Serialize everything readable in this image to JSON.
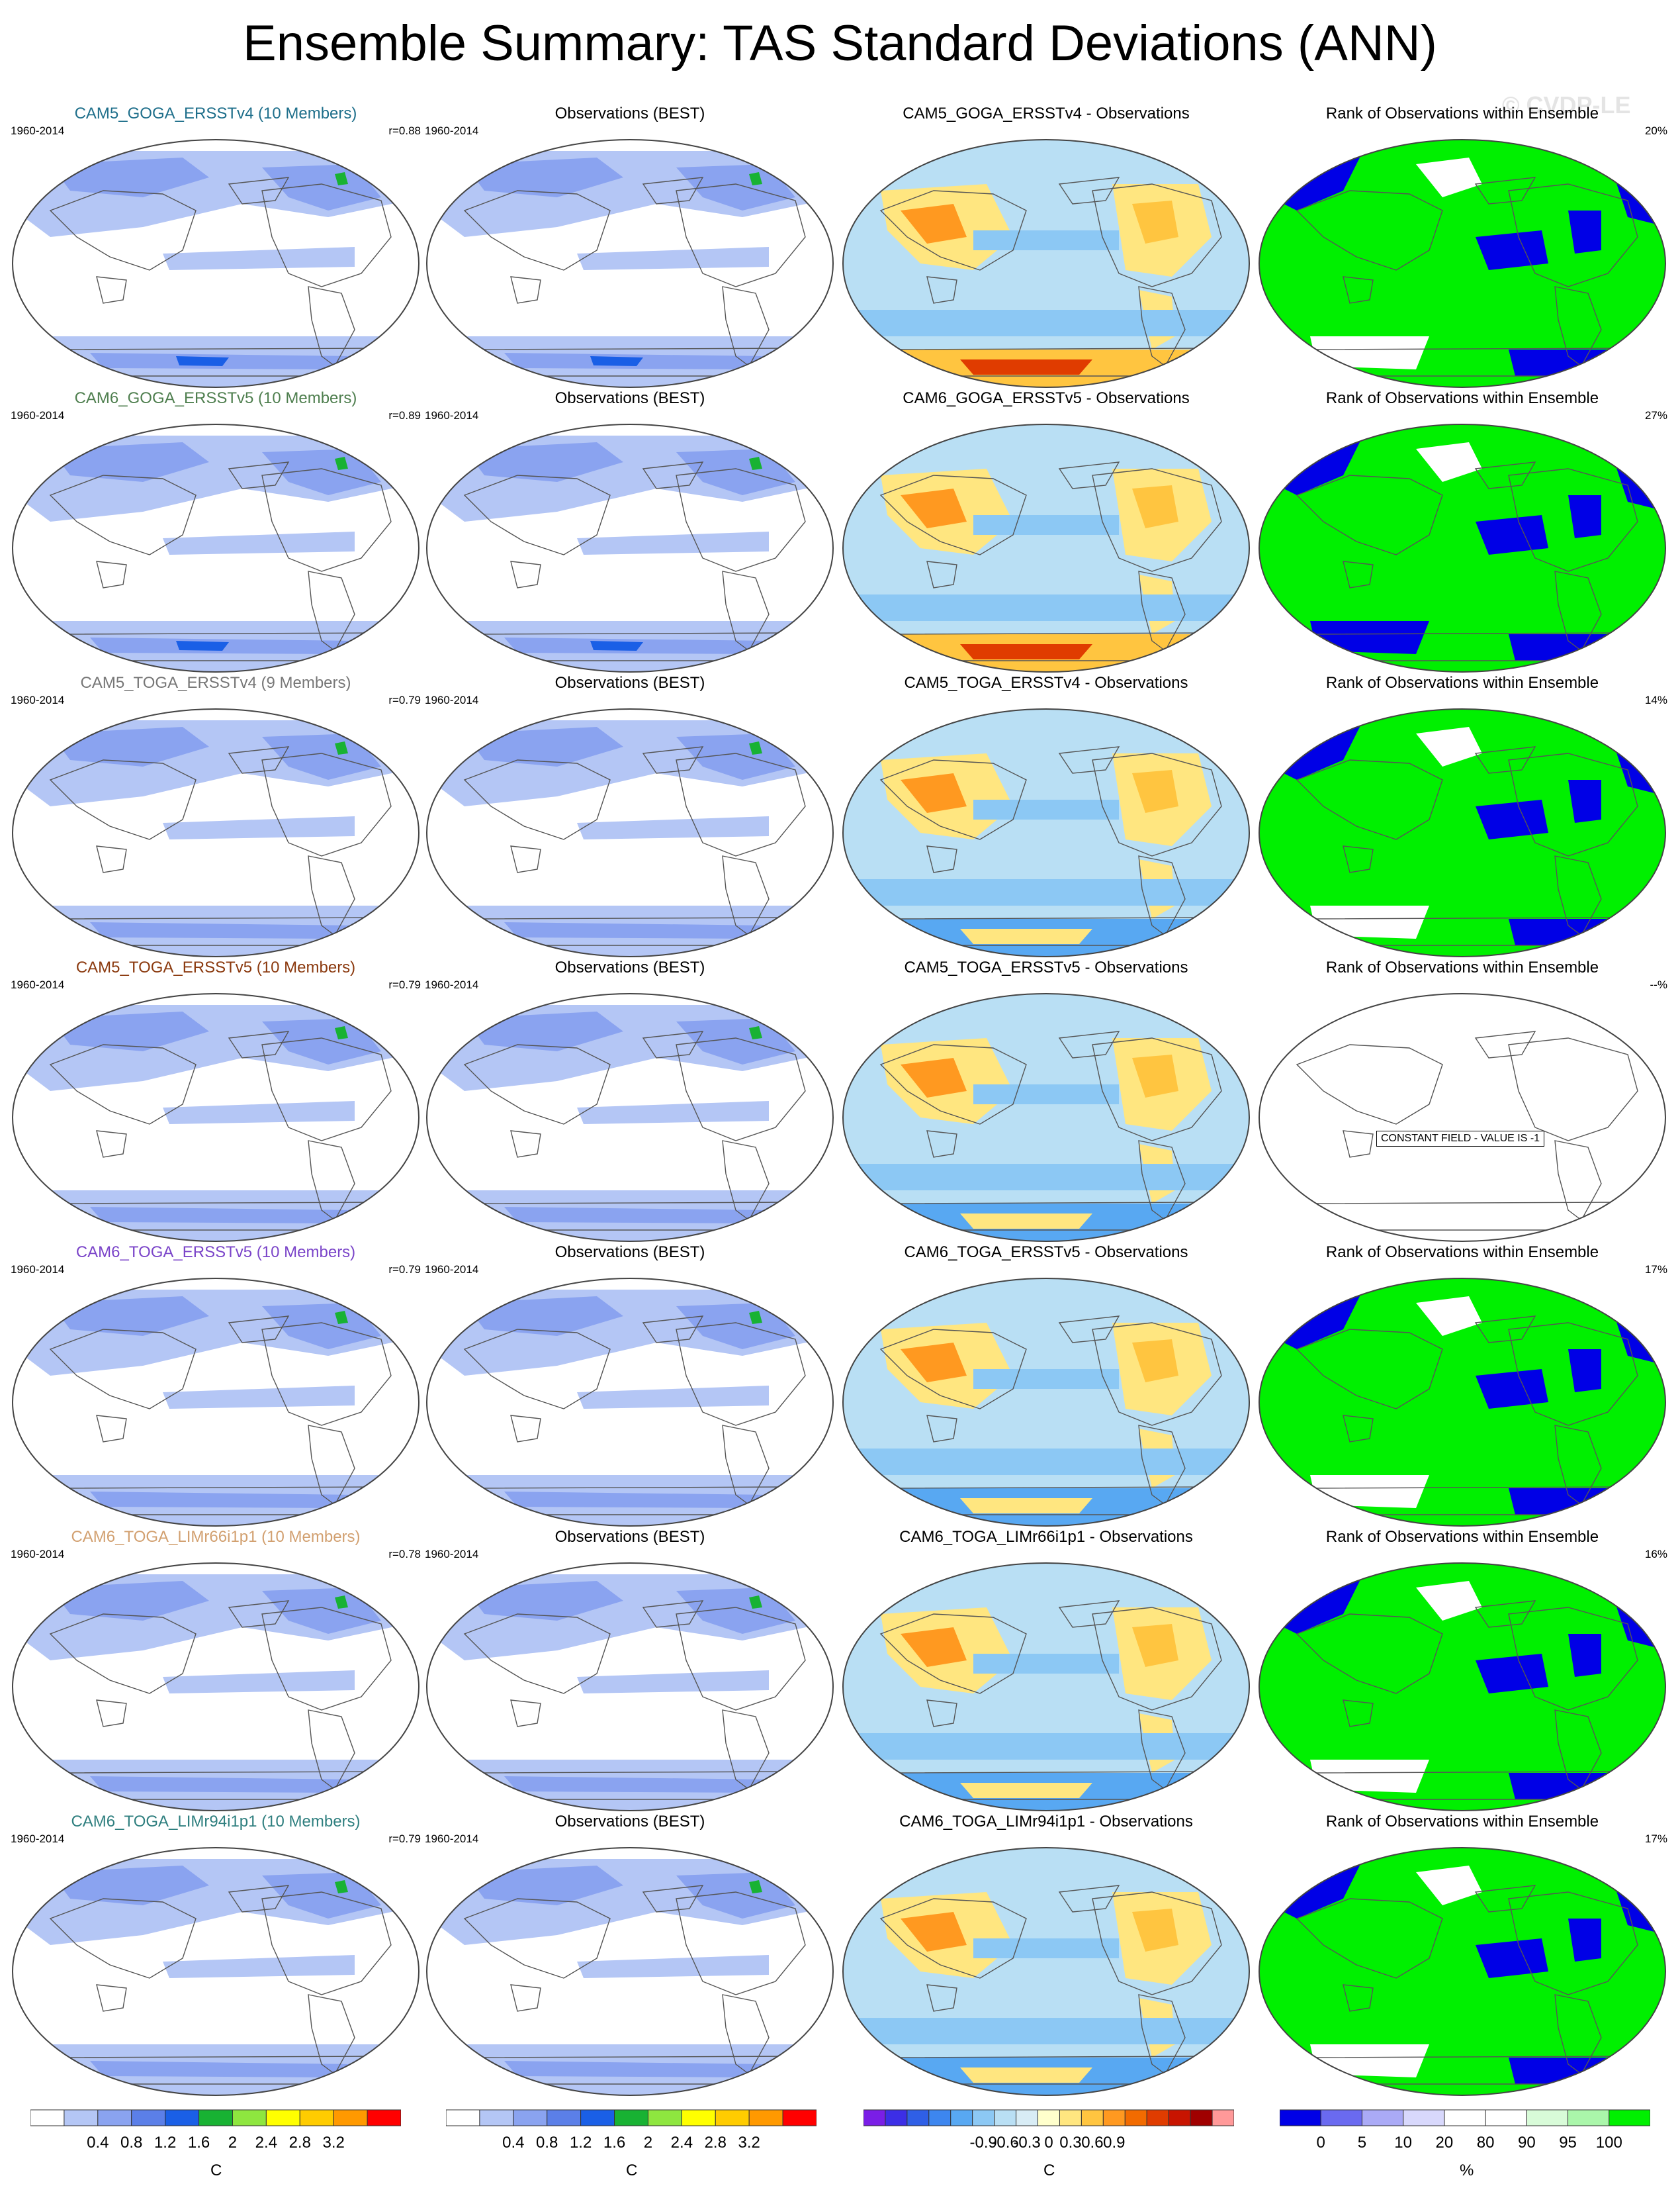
{
  "title": "Ensemble Summary: TAS Standard Deviations (ANN)",
  "watermark": "© CVDP-LE",
  "rows": [
    {
      "ens_title": "CAM5_GOGA_ERSSTv4 (10 Members)",
      "ens_color": "#1f6f8b",
      "period": "1960-2014",
      "r": "r=0.88",
      "obs_title": "Observations (BEST)",
      "diff_title": "CAM5_GOGA_ERSSTv4 - Observations",
      "rank_title": "Rank of Observations within Ensemble",
      "rank_pct": "20%"
    },
    {
      "ens_title": "CAM6_GOGA_ERSSTv5 (10 Members)",
      "ens_color": "#4f7f4f",
      "period": "1960-2014",
      "r": "r=0.89",
      "obs_title": "Observations (BEST)",
      "diff_title": "CAM6_GOGA_ERSSTv5 - Observations",
      "rank_title": "Rank of Observations within Ensemble",
      "rank_pct": "27%"
    },
    {
      "ens_title": "CAM5_TOGA_ERSSTv4 (9 Members)",
      "ens_color": "#777777",
      "period": "1960-2014",
      "r": "r=0.79",
      "obs_title": "Observations (BEST)",
      "diff_title": "CAM5_TOGA_ERSSTv4 - Observations",
      "rank_title": "Rank of Observations within Ensemble",
      "rank_pct": "14%"
    },
    {
      "ens_title": "CAM5_TOGA_ERSSTv5 (10 Members)",
      "ens_color": "#8b3a0f",
      "period": "1960-2014",
      "r": "r=0.79",
      "obs_title": "Observations (BEST)",
      "diff_title": "CAM5_TOGA_ERSSTv5 - Observations",
      "rank_title": "Rank of Observations within Ensemble",
      "rank_pct": "--%",
      "rank_note": "CONSTANT FIELD - VALUE IS -1"
    },
    {
      "ens_title": "CAM6_TOGA_ERSSTv5 (10 Members)",
      "ens_color": "#7b45c9",
      "period": "1960-2014",
      "r": "r=0.79",
      "obs_title": "Observations (BEST)",
      "diff_title": "CAM6_TOGA_ERSSTv5 - Observations",
      "rank_title": "Rank of Observations within Ensemble",
      "rank_pct": "17%"
    },
    {
      "ens_title": "CAM6_TOGA_LIMr66i1p1 (10 Members)",
      "ens_color": "#d2a070",
      "period": "1960-2014",
      "r": "r=0.78",
      "obs_title": "Observations (BEST)",
      "diff_title": "CAM6_TOGA_LIMr66i1p1 - Observations",
      "rank_title": "Rank of Observations within Ensemble",
      "rank_pct": "16%"
    },
    {
      "ens_title": "CAM6_TOGA_LIMr94i1p1 (10 Members)",
      "ens_color": "#2f7f7f",
      "period": "1960-2014",
      "r": "r=0.79",
      "obs_title": "Observations (BEST)",
      "diff_title": "CAM6_TOGA_LIMr94i1p1 - Observations",
      "rank_title": "Rank of Observations within Ensemble",
      "rank_pct": "17%"
    }
  ],
  "colorbars": [
    {
      "name": "std",
      "unit": "C",
      "colors": [
        "#ffffff",
        "#b4c6f5",
        "#8aa3f0",
        "#5b7fe8",
        "#1a5fe6",
        "#18b233",
        "#8ee63f",
        "#ffff00",
        "#ffcc00",
        "#ff9900",
        "#ff0000"
      ],
      "ticks": [
        "0.4",
        "0.8",
        "1.2",
        "1.6",
        "2",
        "2.4",
        "2.8",
        "3.2"
      ]
    },
    {
      "name": "std_obs",
      "unit": "C",
      "colors": [
        "#ffffff",
        "#b4c6f5",
        "#8aa3f0",
        "#5b7fe8",
        "#1a5fe6",
        "#18b233",
        "#8ee63f",
        "#ffff00",
        "#ffcc00",
        "#ff9900",
        "#ff0000"
      ],
      "ticks": [
        "0.4",
        "0.8",
        "1.2",
        "1.6",
        "2",
        "2.4",
        "2.8",
        "3.2"
      ]
    },
    {
      "name": "diff",
      "unit": "C",
      "colors": [
        "#7a1ee6",
        "#3c2ee6",
        "#2f5fe6",
        "#3d86ef",
        "#58a8f2",
        "#8cc8f4",
        "#b9dff4",
        "#d8ecf5",
        "#ffffcc",
        "#ffe680",
        "#ffc540",
        "#ff9920",
        "#f26b00",
        "#e03c00",
        "#c81400",
        "#a00000",
        "#ff9999"
      ],
      "ticks": [
        "-0.9",
        "-0.6",
        "-0.3",
        "0",
        "0.3",
        "0.6",
        "0.9"
      ]
    },
    {
      "name": "rank",
      "unit": "%",
      "colors": [
        "#0000e6",
        "#6a6af0",
        "#aaaaf6",
        "#d8d8fc",
        "#ffffff",
        "#ffffff",
        "#d8fbd8",
        "#aaf6aa",
        "#00f000"
      ],
      "ticks": [
        "0",
        "5",
        "10",
        "20",
        "80",
        "90",
        "95",
        "100"
      ]
    }
  ]
}
